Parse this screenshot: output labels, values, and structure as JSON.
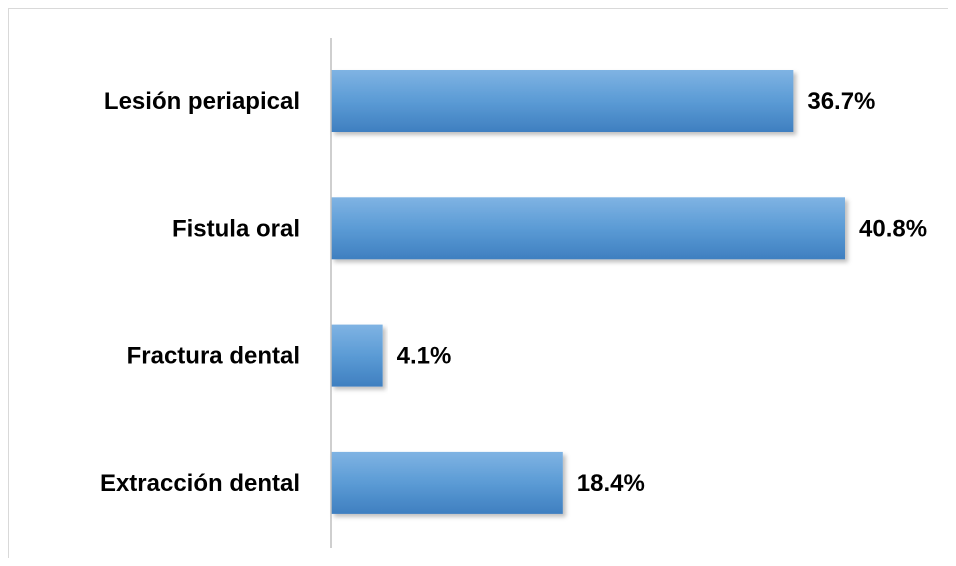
{
  "chart_data": {
    "type": "bar",
    "orientation": "horizontal",
    "categories": [
      "Lesión periapical",
      "Fistula oral",
      "Fractura dental",
      "Extracción dental"
    ],
    "values": [
      36.7,
      40.8,
      4.1,
      18.4
    ],
    "value_labels": [
      "36.7%",
      "40.8%",
      "4.1%",
      "18.4%"
    ],
    "unit": "%",
    "xlim": [
      0,
      40.8
    ],
    "grid": false,
    "legend": "none",
    "colors": {
      "bar": "#5b9bd5",
      "bar_top": "#7fb3e3",
      "bar_bottom": "#3f7fc0",
      "axis": "#bfbfbf",
      "text": "#000000"
    }
  }
}
